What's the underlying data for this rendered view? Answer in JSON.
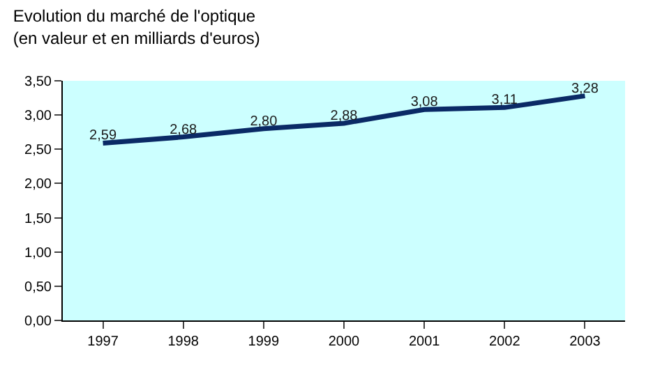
{
  "chart_data": {
    "type": "line",
    "title": "Evolution du marché de l'optique",
    "subtitle": "(en valeur et en milliards d'euros)",
    "categories": [
      "1997",
      "1998",
      "1999",
      "2000",
      "2001",
      "2002",
      "2003"
    ],
    "series": [
      {
        "color": "#0a2a66",
        "values": [
          2.59,
          2.68,
          2.8,
          2.88,
          3.08,
          3.11,
          3.28
        ],
        "value_labels": [
          "2,59",
          "2,68",
          "2,80",
          "2,88",
          "3,08",
          "3,11",
          "3,28"
        ]
      }
    ],
    "ylim": [
      0,
      3.5
    ],
    "yticks": [
      {
        "value": 0,
        "label": "0,00"
      },
      {
        "value": 0.5,
        "label": "0,50"
      },
      {
        "value": 1,
        "label": "1,00"
      },
      {
        "value": 1.5,
        "label": "1,50"
      },
      {
        "value": 2,
        "label": "2,00"
      },
      {
        "value": 2.5,
        "label": "2,50"
      },
      {
        "value": 3,
        "label": "3,00"
      },
      {
        "value": 3.5,
        "label": "3,50"
      }
    ],
    "grid": false,
    "legend": false,
    "marker": "none",
    "line_style": "solid"
  }
}
